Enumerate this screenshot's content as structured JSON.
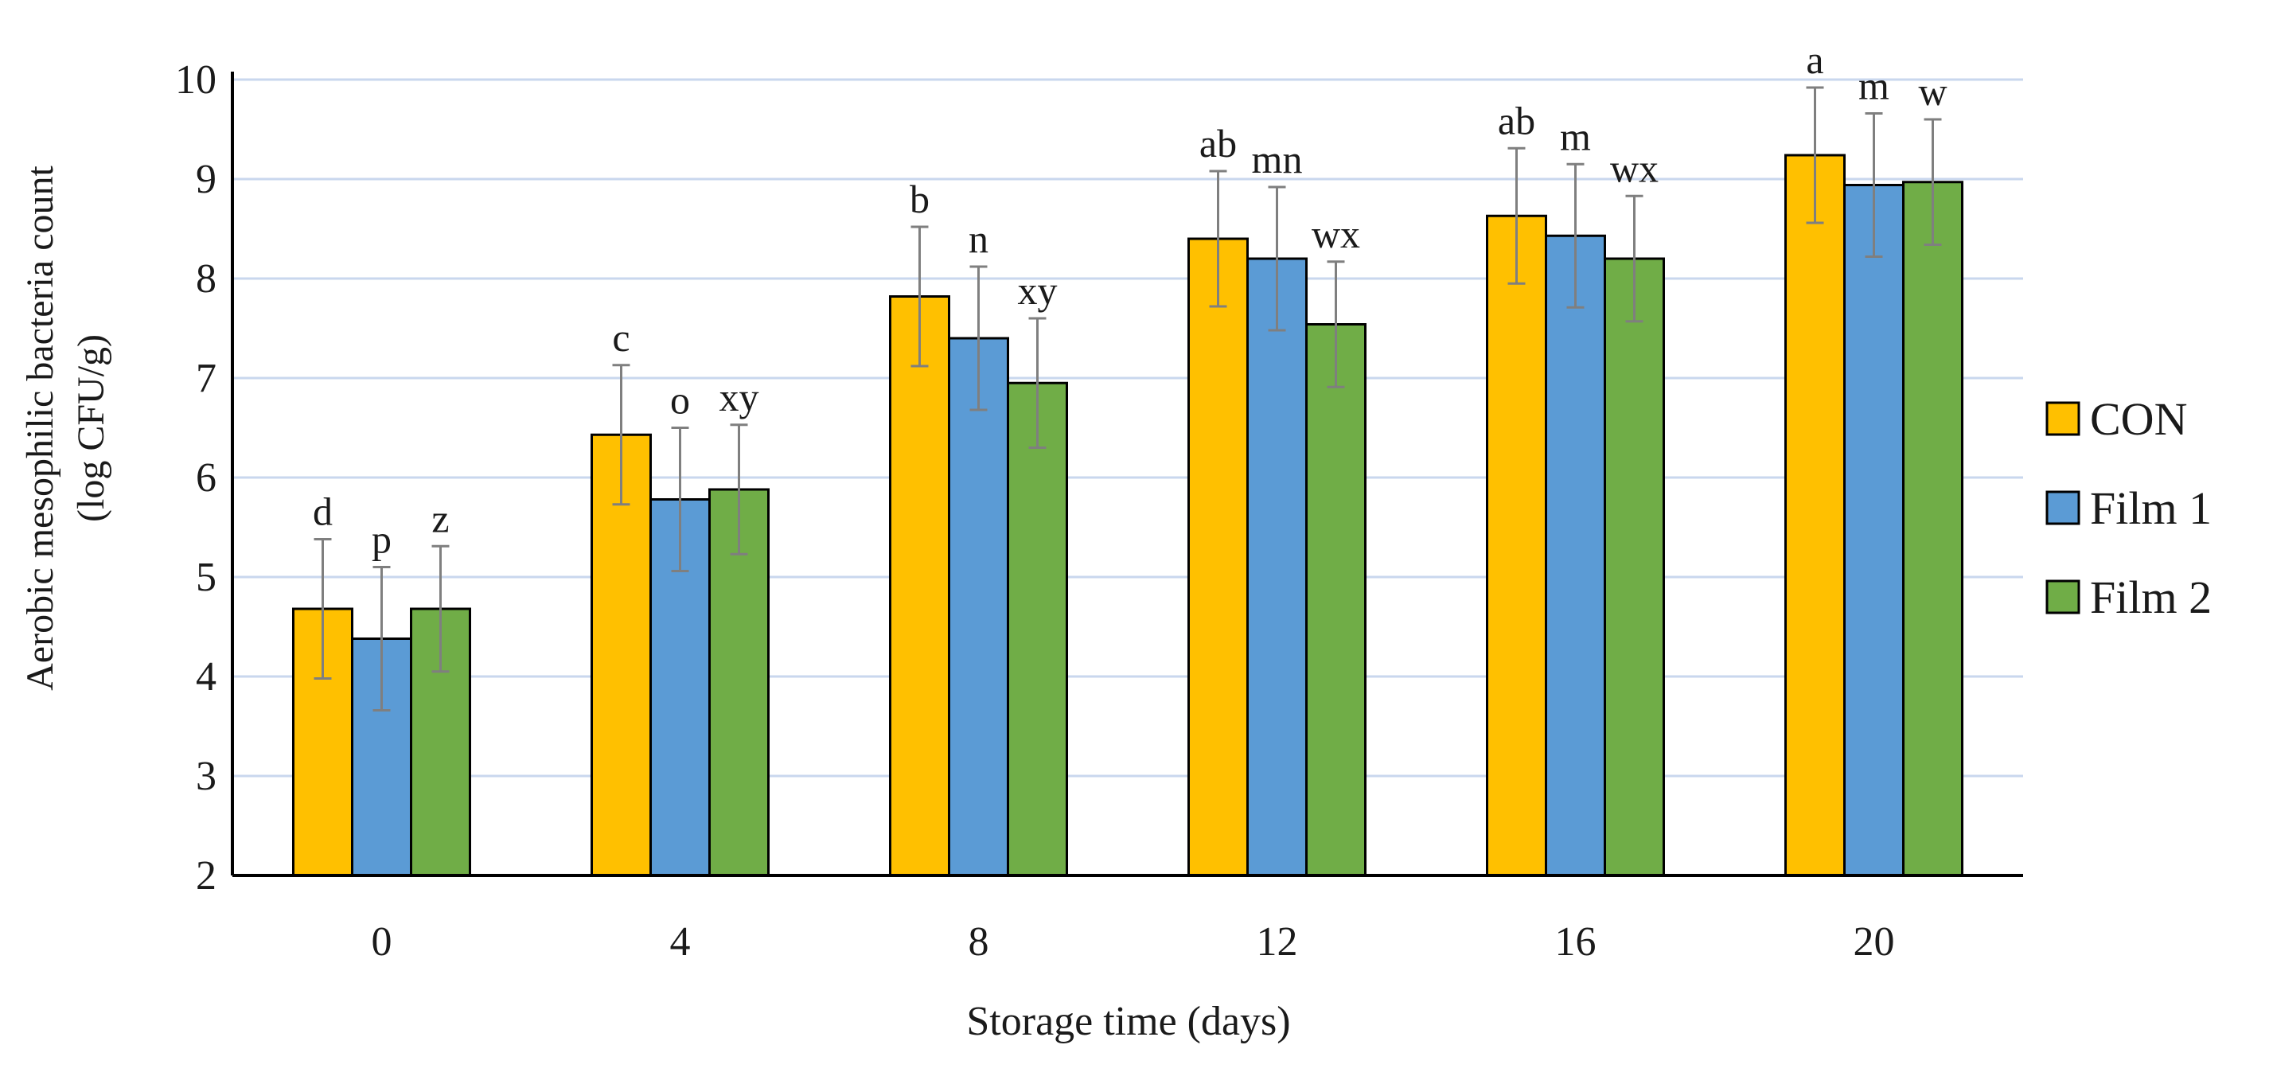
{
  "chart_data": {
    "type": "bar",
    "title": "",
    "xlabel": "Storage time (days)",
    "ylabel_line1": "Aerobic mesophilic bacteria count",
    "ylabel_line2": "(log CFU/g)",
    "ylim": [
      2,
      10
    ],
    "yticks": [
      2,
      3,
      4,
      5,
      6,
      7,
      8,
      9,
      10
    ],
    "grid": true,
    "legend_position": "right",
    "categories": [
      "0",
      "4",
      "8",
      "12",
      "16",
      "20"
    ],
    "series": [
      {
        "name": "CON",
        "color": "#FFC000",
        "values": [
          4.68,
          6.43,
          7.82,
          8.4,
          8.63,
          9.24
        ],
        "errors": [
          0.7,
          0.7,
          0.7,
          0.68,
          0.68,
          0.68
        ],
        "letters": [
          "d",
          "c",
          "b",
          "ab",
          "ab",
          "a"
        ]
      },
      {
        "name": "Film 1",
        "color": "#5B9BD5",
        "values": [
          4.38,
          5.78,
          7.4,
          8.2,
          8.43,
          8.94
        ],
        "errors": [
          0.72,
          0.72,
          0.72,
          0.72,
          0.72,
          0.72
        ],
        "letters": [
          "p",
          "o",
          "n",
          "mn",
          "m",
          "m"
        ]
      },
      {
        "name": "Film 2",
        "color": "#70AD47",
        "values": [
          4.68,
          5.88,
          6.95,
          7.54,
          8.2,
          8.97
        ],
        "errors": [
          0.63,
          0.65,
          0.65,
          0.63,
          0.63,
          0.63
        ],
        "letters": [
          "z",
          "xy",
          "xy",
          "wx",
          "wx",
          "w"
        ]
      }
    ],
    "colors": {
      "gridline": "#C9D7EE",
      "axis": "#000000",
      "bar_outline": "#000000",
      "error_bar": "#7F7F7F"
    }
  }
}
